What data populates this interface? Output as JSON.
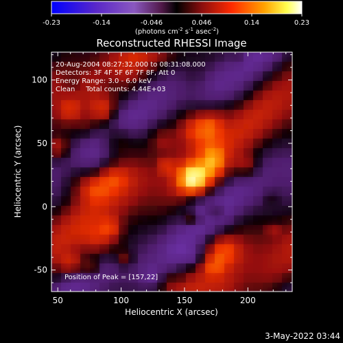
{
  "chart_data": {
    "type": "heatmap",
    "title": "Reconstructed RHESSI Image",
    "xlabel": "Heliocentric X (arcsec)",
    "ylabel": "Heliocentric Y (arcsec)",
    "xlim": [
      45,
      235
    ],
    "ylim": [
      -67,
      122
    ],
    "x_ticks": [
      50,
      100,
      150,
      200
    ],
    "y_ticks": [
      -50,
      0,
      50,
      100
    ],
    "colorbar": {
      "range": [
        -0.23,
        0.23
      ],
      "ticks": [
        "-0.23",
        "-0.14",
        "-0.046",
        "0.046",
        "0.14",
        "0.23"
      ],
      "unit_main": "(photons cm",
      "unit_sup1": "-2",
      "unit_mid1": " s",
      "unit_sup2": "-1",
      "unit_mid2": " asec",
      "unit_sup3": "-2",
      "unit_end": ")"
    },
    "annotations": [
      "20-Aug-2004 08:27:32.000 to 08:31:08.000",
      "Detectors: 3F 4F 5F 6F 7F 8F, Att 0",
      "Energy Range: 3.0 - 6.0 keV",
      "Clean     Total counts: 4.44E+03"
    ],
    "peak_label": "Position of Peak = [157,22]",
    "peak": [
      157,
      22
    ],
    "colors": [
      "#0000ff",
      "#4a1a9c",
      "#7a3ab0",
      "#000000",
      "#b81e1e",
      "#ff4800",
      "#ffa000",
      "#ffff40",
      "#ffffff"
    ]
  },
  "timestamp": "3-May-2022 03:44"
}
